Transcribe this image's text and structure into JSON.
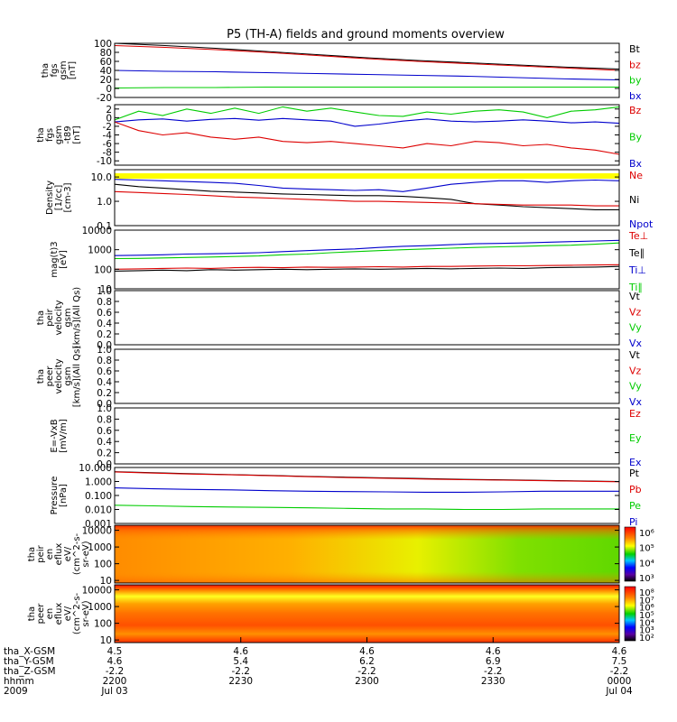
{
  "chart_data": {
    "type": "line",
    "title": "P5 (TH-A) fields and ground moments overview",
    "x": {
      "ticks": [
        "2200",
        "2230",
        "2300",
        "2330",
        "0000"
      ],
      "date_start": "Jul 03",
      "date_end": "Jul 04",
      "year": "2009"
    },
    "orbit_rows": [
      {
        "label": "tha_X-GSM",
        "values": [
          "4.5",
          "4.6",
          "4.6",
          "4.6",
          "4.6"
        ]
      },
      {
        "label": "tha_Y-GSM",
        "values": [
          "4.6",
          "5.4",
          "6.2",
          "6.9",
          "7.5"
        ]
      },
      {
        "label": "tha_Z-GSM",
        "values": [
          "-2.2",
          "-2.2",
          "-2.2",
          "-2.2",
          "-2.2"
        ]
      },
      {
        "label": "hhmm",
        "values": [
          "2200",
          "2230",
          "2300",
          "2330",
          "0000"
        ]
      },
      {
        "label": "2009",
        "values": [
          "Jul 03",
          "",
          "",
          "",
          "Jul 04"
        ]
      }
    ],
    "colors": {
      "black": "#000000",
      "red": "#dd0000",
      "green": "#00cc00",
      "blue": "#0000cc",
      "yellow": "#ffff00"
    },
    "panels": [
      {
        "id": "fgs_gsm",
        "ylabel": [
          "tha",
          "fgs",
          "gsm",
          "[nT]"
        ],
        "ticks": [
          "100",
          "80",
          "60",
          "40",
          "20",
          "0",
          "-20"
        ],
        "ylim": [
          -20,
          100
        ],
        "legend": [
          "Bt",
          "bz",
          "by",
          "bx"
        ],
        "legend_colors": [
          "#000000",
          "#dd0000",
          "#00cc00",
          "#0000cc"
        ],
        "series": [
          {
            "color": "#000000",
            "values": [
              100,
              95,
              89,
              82,
              75,
              68,
              62,
              57,
              52,
              47,
              43
            ]
          },
          {
            "color": "#dd0000",
            "values": [
              95,
              91,
              86,
              80,
              73,
              66,
              60,
              55,
              50,
              45,
              40
            ]
          },
          {
            "color": "#0000cc",
            "values": [
              40,
              38,
              37,
              35,
              33,
              31,
              29,
              27,
              24,
              21,
              19
            ]
          },
          {
            "color": "#00cc00",
            "values": [
              1,
              2,
              2,
              3,
              3,
              3,
              3,
              3,
              3,
              3,
              3
            ]
          }
        ]
      },
      {
        "id": "fgs_dsl",
        "ylabel": [
          "tha",
          "fgs",
          "gsm",
          "-t89",
          "[nT]"
        ],
        "ticks": [
          "2",
          "0",
          "-2",
          "-4",
          "-6",
          "-8",
          "-10"
        ],
        "ylim": [
          -11,
          3
        ],
        "legend": [
          "Bz",
          "By",
          "Bx"
        ],
        "legend_colors": [
          "#dd0000",
          "#00cc00",
          "#0000cc"
        ],
        "series": [
          {
            "color": "#00cc00",
            "values": [
              -0.5,
              1.5,
              0.5,
              2,
              1,
              2.2,
              1,
              2.5,
              1.5,
              2.2,
              1.3,
              0.5,
              0.3,
              1.3,
              0.8,
              1.5,
              1.8,
              1.3,
              0,
              1.5,
              1.8,
              2.5
            ]
          },
          {
            "color": "#0000cc",
            "values": [
              -1,
              -0.5,
              -0.3,
              -0.8,
              -0.4,
              -0.2,
              -0.6,
              -0.2,
              -0.5,
              -0.8,
              -2,
              -1.5,
              -0.8,
              -0.3,
              -0.8,
              -1,
              -0.8,
              -0.5,
              -0.8,
              -1.2,
              -1,
              -1.3
            ]
          },
          {
            "color": "#dd0000",
            "values": [
              -1,
              -3,
              -4,
              -3.5,
              -4.5,
              -5,
              -4.5,
              -5.5,
              -5.8,
              -5.5,
              -6,
              -6.5,
              -7,
              -6,
              -6.5,
              -5.5,
              -5.8,
              -6.5,
              -6.2,
              -7,
              -7.5,
              -8.5
            ]
          }
        ]
      },
      {
        "id": "density",
        "log": true,
        "ylabel": [
          "Density",
          "[1/cc]",
          "[cm-3]"
        ],
        "ticks": [
          "10.0",
          "1.0",
          "0.1"
        ],
        "ylim": [
          0.1,
          20
        ],
        "legend": [
          "Ne",
          "Ni",
          "Npot"
        ],
        "legend_colors": [
          "#dd0000",
          "#000000",
          "#0000cc"
        ],
        "series": [
          {
            "color": "#0000cc",
            "values": [
              8,
              7.5,
              7,
              6.5,
              6,
              5.5,
              4.5,
              3.5,
              3.2,
              3,
              2.8,
              3,
              2.5,
              3.5,
              5,
              6,
              7,
              7,
              6,
              7,
              7.5,
              7
            ]
          },
          {
            "color": "#000000",
            "values": [
              5,
              4,
              3.5,
              3,
              2.6,
              2.4,
              2.2,
              2,
              1.9,
              1.8,
              1.7,
              1.7,
              1.6,
              1.4,
              1.2,
              0.8,
              0.7,
              0.6,
              0.55,
              0.5,
              0.45,
              0.45
            ]
          },
          {
            "color": "#dd0000",
            "values": [
              2.5,
              2.3,
              2.1,
              1.9,
              1.7,
              1.5,
              1.4,
              1.3,
              1.2,
              1.1,
              1,
              1,
              0.95,
              0.9,
              0.85,
              0.8,
              0.75,
              0.7,
              0.7,
              0.7,
              0.65,
              0.65
            ]
          }
        ]
      },
      {
        "id": "temp",
        "log": true,
        "ylabel": [
          "mag(t)3",
          "[eV]"
        ],
        "ticks": [
          "10000",
          "1000",
          "100",
          "10"
        ],
        "ylim": [
          10,
          10000
        ],
        "legend": [
          "Te⊥",
          "Te∥",
          "Ti⊥",
          "Ti∥"
        ],
        "legend_colors": [
          "#dd0000",
          "#000000",
          "#0000cc",
          "#00cc00"
        ],
        "series": [
          {
            "color": "#0000cc",
            "values": [
              500,
              520,
              550,
              600,
              620,
              650,
              700,
              800,
              900,
              1000,
              1100,
              1300,
              1500,
              1600,
              1800,
              2000,
              2100,
              2200,
              2400,
              2600,
              2800,
              3000
            ]
          },
          {
            "color": "#00cc00",
            "values": [
              350,
              360,
              380,
              400,
              420,
              450,
              480,
              550,
              600,
              700,
              800,
              900,
              1000,
              1100,
              1200,
              1300,
              1400,
              1500,
              1600,
              1700,
              1900,
              2200
            ]
          },
          {
            "color": "#dd0000",
            "values": [
              100,
              105,
              110,
              115,
              110,
              120,
              125,
              120,
              130,
              125,
              130,
              135,
              130,
              140,
              140,
              145,
              150,
              150,
              155,
              160,
              165,
              170
            ]
          },
          {
            "color": "#000000",
            "values": [
              80,
              85,
              90,
              85,
              95,
              90,
              95,
              100,
              95,
              100,
              105,
              100,
              105,
              110,
              105,
              110,
              115,
              110,
              120,
              125,
              130,
              140
            ]
          }
        ]
      },
      {
        "id": "peir_vel",
        "ylabel": [
          "tha",
          "peir",
          "velocity",
          "gsm",
          "[km/s](All Qs)"
        ],
        "ticks": [
          "1.0",
          "0.8",
          "0.6",
          "0.4",
          "0.2",
          "0.0"
        ],
        "ylim": [
          0,
          1
        ],
        "legend": [
          "Vt",
          "Vz",
          "Vy",
          "Vx"
        ],
        "legend_colors": [
          "#000000",
          "#dd0000",
          "#00cc00",
          "#0000cc"
        ],
        "series": []
      },
      {
        "id": "peer_vel",
        "ylabel": [
          "tha",
          "peer",
          "velocity",
          "gsm",
          "[km/s](All Qs)"
        ],
        "ticks": [
          "1.0",
          "0.8",
          "0.6",
          "0.4",
          "0.2",
          "0.0"
        ],
        "ylim": [
          0,
          1
        ],
        "legend": [
          "Vt",
          "Vz",
          "Vy",
          "Vx"
        ],
        "legend_colors": [
          "#000000",
          "#dd0000",
          "#00cc00",
          "#0000cc"
        ],
        "series": []
      },
      {
        "id": "efield",
        "ylabel": [
          "E=-VxB",
          "[mV/m]"
        ],
        "ticks": [
          "1.0",
          "0.8",
          "0.6",
          "0.4",
          "0.2",
          "0.0"
        ],
        "ylim": [
          0,
          1
        ],
        "legend": [
          "Ez",
          "Ey",
          "Ex"
        ],
        "legend_colors": [
          "#dd0000",
          "#00cc00",
          "#0000cc"
        ],
        "series": []
      },
      {
        "id": "pressure",
        "log": true,
        "ylabel": [
          "Pressure",
          "[nPa]"
        ],
        "ticks": [
          "10.000",
          "1.000",
          "0.100",
          "0.010",
          "0.001"
        ],
        "ylim": [
          0.001,
          10
        ],
        "legend": [
          "Pt",
          "Pb",
          "Pe",
          "Pi"
        ],
        "legend_colors": [
          "#000000",
          "#dd0000",
          "#00cc00",
          "#0000cc"
        ],
        "series": [
          {
            "color": "#000000",
            "values": [
              5.0,
              4.2,
              3.6,
              3.1,
              2.7,
              2.3,
              2.0,
              1.8,
              1.6,
              1.4,
              1.3,
              1.2,
              1.1,
              1.0
            ]
          },
          {
            "color": "#dd0000",
            "values": [
              4.8,
              4.0,
              3.4,
              3.0,
              2.6,
              2.2,
              1.9,
              1.7,
              1.5,
              1.35,
              1.25,
              1.15,
              1.05,
              0.95
            ]
          },
          {
            "color": "#0000cc",
            "values": [
              0.35,
              0.3,
              0.27,
              0.25,
              0.22,
              0.2,
              0.19,
              0.18,
              0.17,
              0.17,
              0.18,
              0.2,
              0.2,
              0.2
            ]
          },
          {
            "color": "#00cc00",
            "values": [
              0.02,
              0.018,
              0.016,
              0.015,
              0.014,
              0.013,
              0.012,
              0.011,
              0.011,
              0.01,
              0.01,
              0.011,
              0.011,
              0.011
            ]
          }
        ]
      },
      {
        "id": "peir_eflux",
        "type": "heatmap",
        "log": true,
        "ylabel": [
          "tha",
          "peir",
          "en",
          "eflux",
          "eV/",
          "(cm^2-s-",
          "sr-eV)"
        ],
        "ticks": [
          "10000",
          "1000",
          "100",
          "10"
        ],
        "ylim": [
          7,
          20000
        ],
        "colorbar": {
          "ticks": [
            "10⁶",
            "10⁵",
            "10⁴",
            "10³"
          ]
        }
      },
      {
        "id": "peer_eflux",
        "type": "heatmap",
        "log": true,
        "ylabel": [
          "tha",
          "peer",
          "en",
          "eflux",
          "eV/",
          "(cm^2-s-",
          "sr-eV)"
        ],
        "ticks": [
          "10000",
          "1000",
          "100",
          "10"
        ],
        "ylim": [
          7,
          20000
        ],
        "colorbar": {
          "ticks": [
            "10⁸",
            "10⁷",
            "10⁶",
            "10⁵",
            "10⁴",
            "10³",
            "10²"
          ]
        }
      }
    ]
  }
}
